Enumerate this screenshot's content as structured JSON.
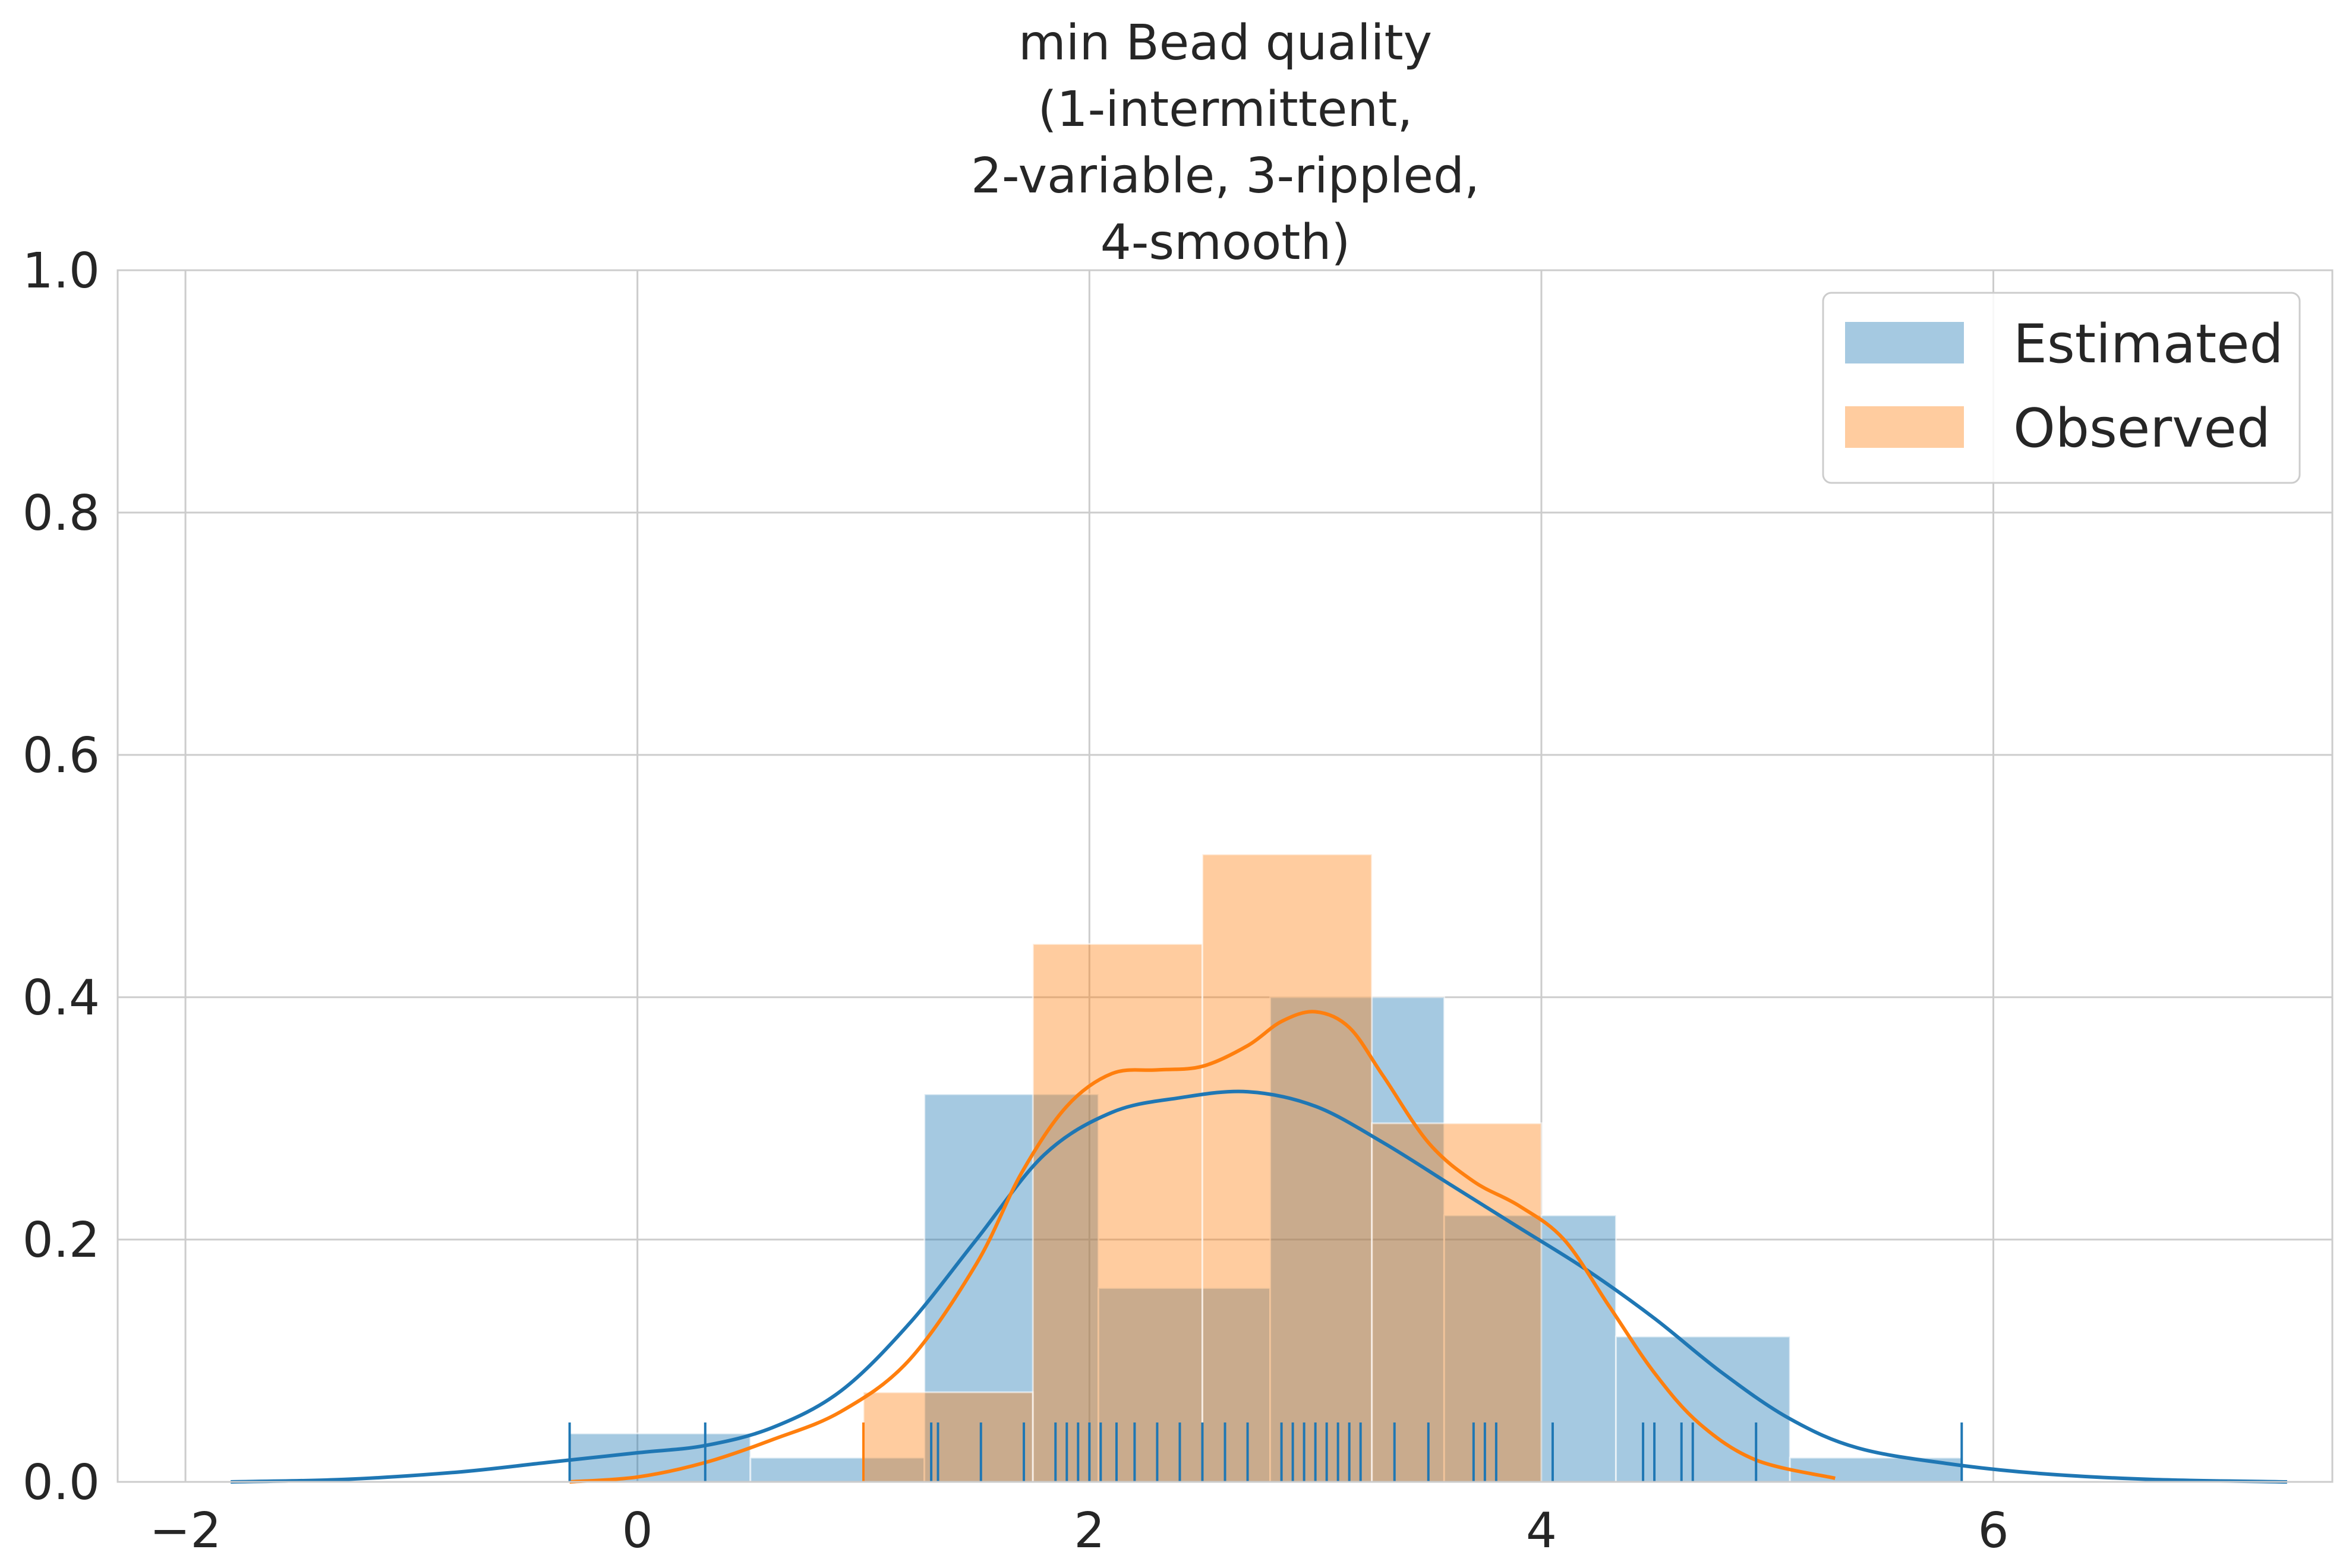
{
  "chart_data": {
    "type": "histogram",
    "title": [
      "min Bead quality",
      "(1-intermittent,",
      "2-variable, 3-rippled,",
      "4-smooth)"
    ],
    "xlabel": "",
    "ylabel": "",
    "xlim": [
      -2.3,
      7.5
    ],
    "ylim": [
      0.0,
      1.0
    ],
    "x_ticks": [
      -2,
      0,
      2,
      4,
      6
    ],
    "x_tick_labels": [
      "−2",
      "0",
      "2",
      "4",
      "6"
    ],
    "y_ticks": [
      0.0,
      0.2,
      0.4,
      0.6,
      0.8,
      1.0
    ],
    "y_tick_labels": [
      "0.0",
      "0.2",
      "0.4",
      "0.6",
      "0.8",
      "1.0"
    ],
    "grid": true,
    "legend_position": "top-right",
    "series": [
      {
        "name": "Estimated",
        "color": "#1f77b4",
        "hist": [
          {
            "x0": -0.3,
            "x1": 0.5,
            "value": 0.04
          },
          {
            "x0": 0.5,
            "x1": 1.27,
            "value": 0.02
          },
          {
            "x0": 1.27,
            "x1": 2.04,
            "value": 0.32
          },
          {
            "x0": 2.04,
            "x1": 2.8,
            "value": 0.16
          },
          {
            "x0": 2.8,
            "x1": 3.57,
            "value": 0.4
          },
          {
            "x0": 3.57,
            "x1": 4.33,
            "value": 0.22
          },
          {
            "x0": 4.33,
            "x1": 5.1,
            "value": 0.12
          },
          {
            "x0": 5.1,
            "x1": 5.86,
            "value": 0.02
          }
        ],
        "kde": [
          [
            -1.8,
            0.0
          ],
          [
            -1.3,
            0.002
          ],
          [
            -0.8,
            0.008
          ],
          [
            -0.4,
            0.016
          ],
          [
            0.0,
            0.024
          ],
          [
            0.3,
            0.03
          ],
          [
            0.6,
            0.045
          ],
          [
            0.9,
            0.075
          ],
          [
            1.2,
            0.13
          ],
          [
            1.5,
            0.2
          ],
          [
            1.8,
            0.27
          ],
          [
            2.1,
            0.305
          ],
          [
            2.4,
            0.317
          ],
          [
            2.7,
            0.322
          ],
          [
            3.0,
            0.31
          ],
          [
            3.3,
            0.28
          ],
          [
            3.6,
            0.245
          ],
          [
            3.9,
            0.21
          ],
          [
            4.2,
            0.175
          ],
          [
            4.5,
            0.135
          ],
          [
            4.8,
            0.09
          ],
          [
            5.1,
            0.052
          ],
          [
            5.4,
            0.028
          ],
          [
            5.8,
            0.015
          ],
          [
            6.2,
            0.007
          ],
          [
            6.7,
            0.002
          ],
          [
            7.3,
            0.0
          ]
        ],
        "rug": [
          -0.3,
          0.3,
          1.3,
          1.33,
          1.52,
          1.71,
          1.85,
          1.9,
          1.95,
          2.0,
          2.05,
          2.12,
          2.2,
          2.3,
          2.4,
          2.5,
          2.6,
          2.7,
          2.85,
          2.9,
          2.95,
          3.0,
          3.05,
          3.1,
          3.15,
          3.2,
          3.35,
          3.5,
          3.7,
          3.75,
          3.8,
          4.05,
          4.45,
          4.5,
          4.62,
          4.67,
          4.95,
          5.86
        ]
      },
      {
        "name": "Observed",
        "color": "#ff7f0e",
        "hist": [
          {
            "x0": 1.0,
            "x1": 1.75,
            "value": 0.074
          },
          {
            "x0": 1.75,
            "x1": 2.5,
            "value": 0.444
          },
          {
            "x0": 2.5,
            "x1": 3.25,
            "value": 0.518
          },
          {
            "x0": 3.25,
            "x1": 4.0,
            "value": 0.296
          }
        ],
        "kde": [
          [
            -0.3,
            0.0
          ],
          [
            0.0,
            0.004
          ],
          [
            0.3,
            0.016
          ],
          [
            0.6,
            0.035
          ],
          [
            0.9,
            0.058
          ],
          [
            1.2,
            0.1
          ],
          [
            1.5,
            0.18
          ],
          [
            1.7,
            0.255
          ],
          [
            1.9,
            0.31
          ],
          [
            2.1,
            0.337
          ],
          [
            2.3,
            0.34
          ],
          [
            2.5,
            0.343
          ],
          [
            2.7,
            0.36
          ],
          [
            2.85,
            0.38
          ],
          [
            3.0,
            0.388
          ],
          [
            3.15,
            0.375
          ],
          [
            3.3,
            0.335
          ],
          [
            3.5,
            0.28
          ],
          [
            3.7,
            0.248
          ],
          [
            3.9,
            0.228
          ],
          [
            4.1,
            0.2
          ],
          [
            4.3,
            0.145
          ],
          [
            4.5,
            0.09
          ],
          [
            4.7,
            0.048
          ],
          [
            4.95,
            0.018
          ],
          [
            5.3,
            0.003
          ]
        ],
        "rug": [
          1.0
        ]
      }
    ]
  }
}
